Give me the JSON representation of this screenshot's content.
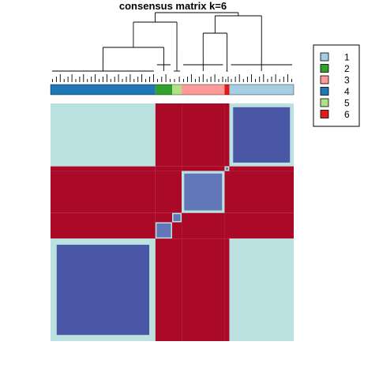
{
  "chart_data": {
    "type": "heatmap",
    "title": "consensus matrix k=6",
    "colors": {
      "high": "#a50026",
      "mid_high": "#f46d43",
      "mid": "#ffffbf",
      "mid_low": "#abd9e9",
      "low": "#313695"
    },
    "column_order_clusters": [
      4,
      2,
      5,
      3,
      6,
      1
    ],
    "cluster_sizes": {
      "4": 44,
      "2": 7,
      "5": 4,
      "3": 18,
      "6": 2,
      "1": 27
    },
    "block_consensus": [
      {
        "rows": 4,
        "cols": 4,
        "value": 0.05
      },
      {
        "rows": 1,
        "cols": 1,
        "value": 0.05
      },
      {
        "rows": 4,
        "cols": 1,
        "value": 0.3
      },
      {
        "rows": 1,
        "cols": 4,
        "value": 0.3
      },
      {
        "rows": 2,
        "cols": 2,
        "value": 0.1
      },
      {
        "rows": 3,
        "cols": 3,
        "value": 0.1
      },
      {
        "rows": 5,
        "cols": 5,
        "value": 0.1
      },
      {
        "rows": 6,
        "cols": 6,
        "value": 0.1
      }
    ],
    "legend": {
      "position": "right",
      "entries": [
        {
          "label": "1",
          "color": "#a6cee3"
        },
        {
          "label": "2",
          "color": "#33a02c"
        },
        {
          "label": "3",
          "color": "#fb9a99"
        },
        {
          "label": "4",
          "color": "#1f78b4"
        },
        {
          "label": "5",
          "color": "#b2df8a"
        },
        {
          "label": "6",
          "color": "#e31a1c"
        }
      ]
    },
    "annotation_bar": true,
    "dendrogram": true
  }
}
